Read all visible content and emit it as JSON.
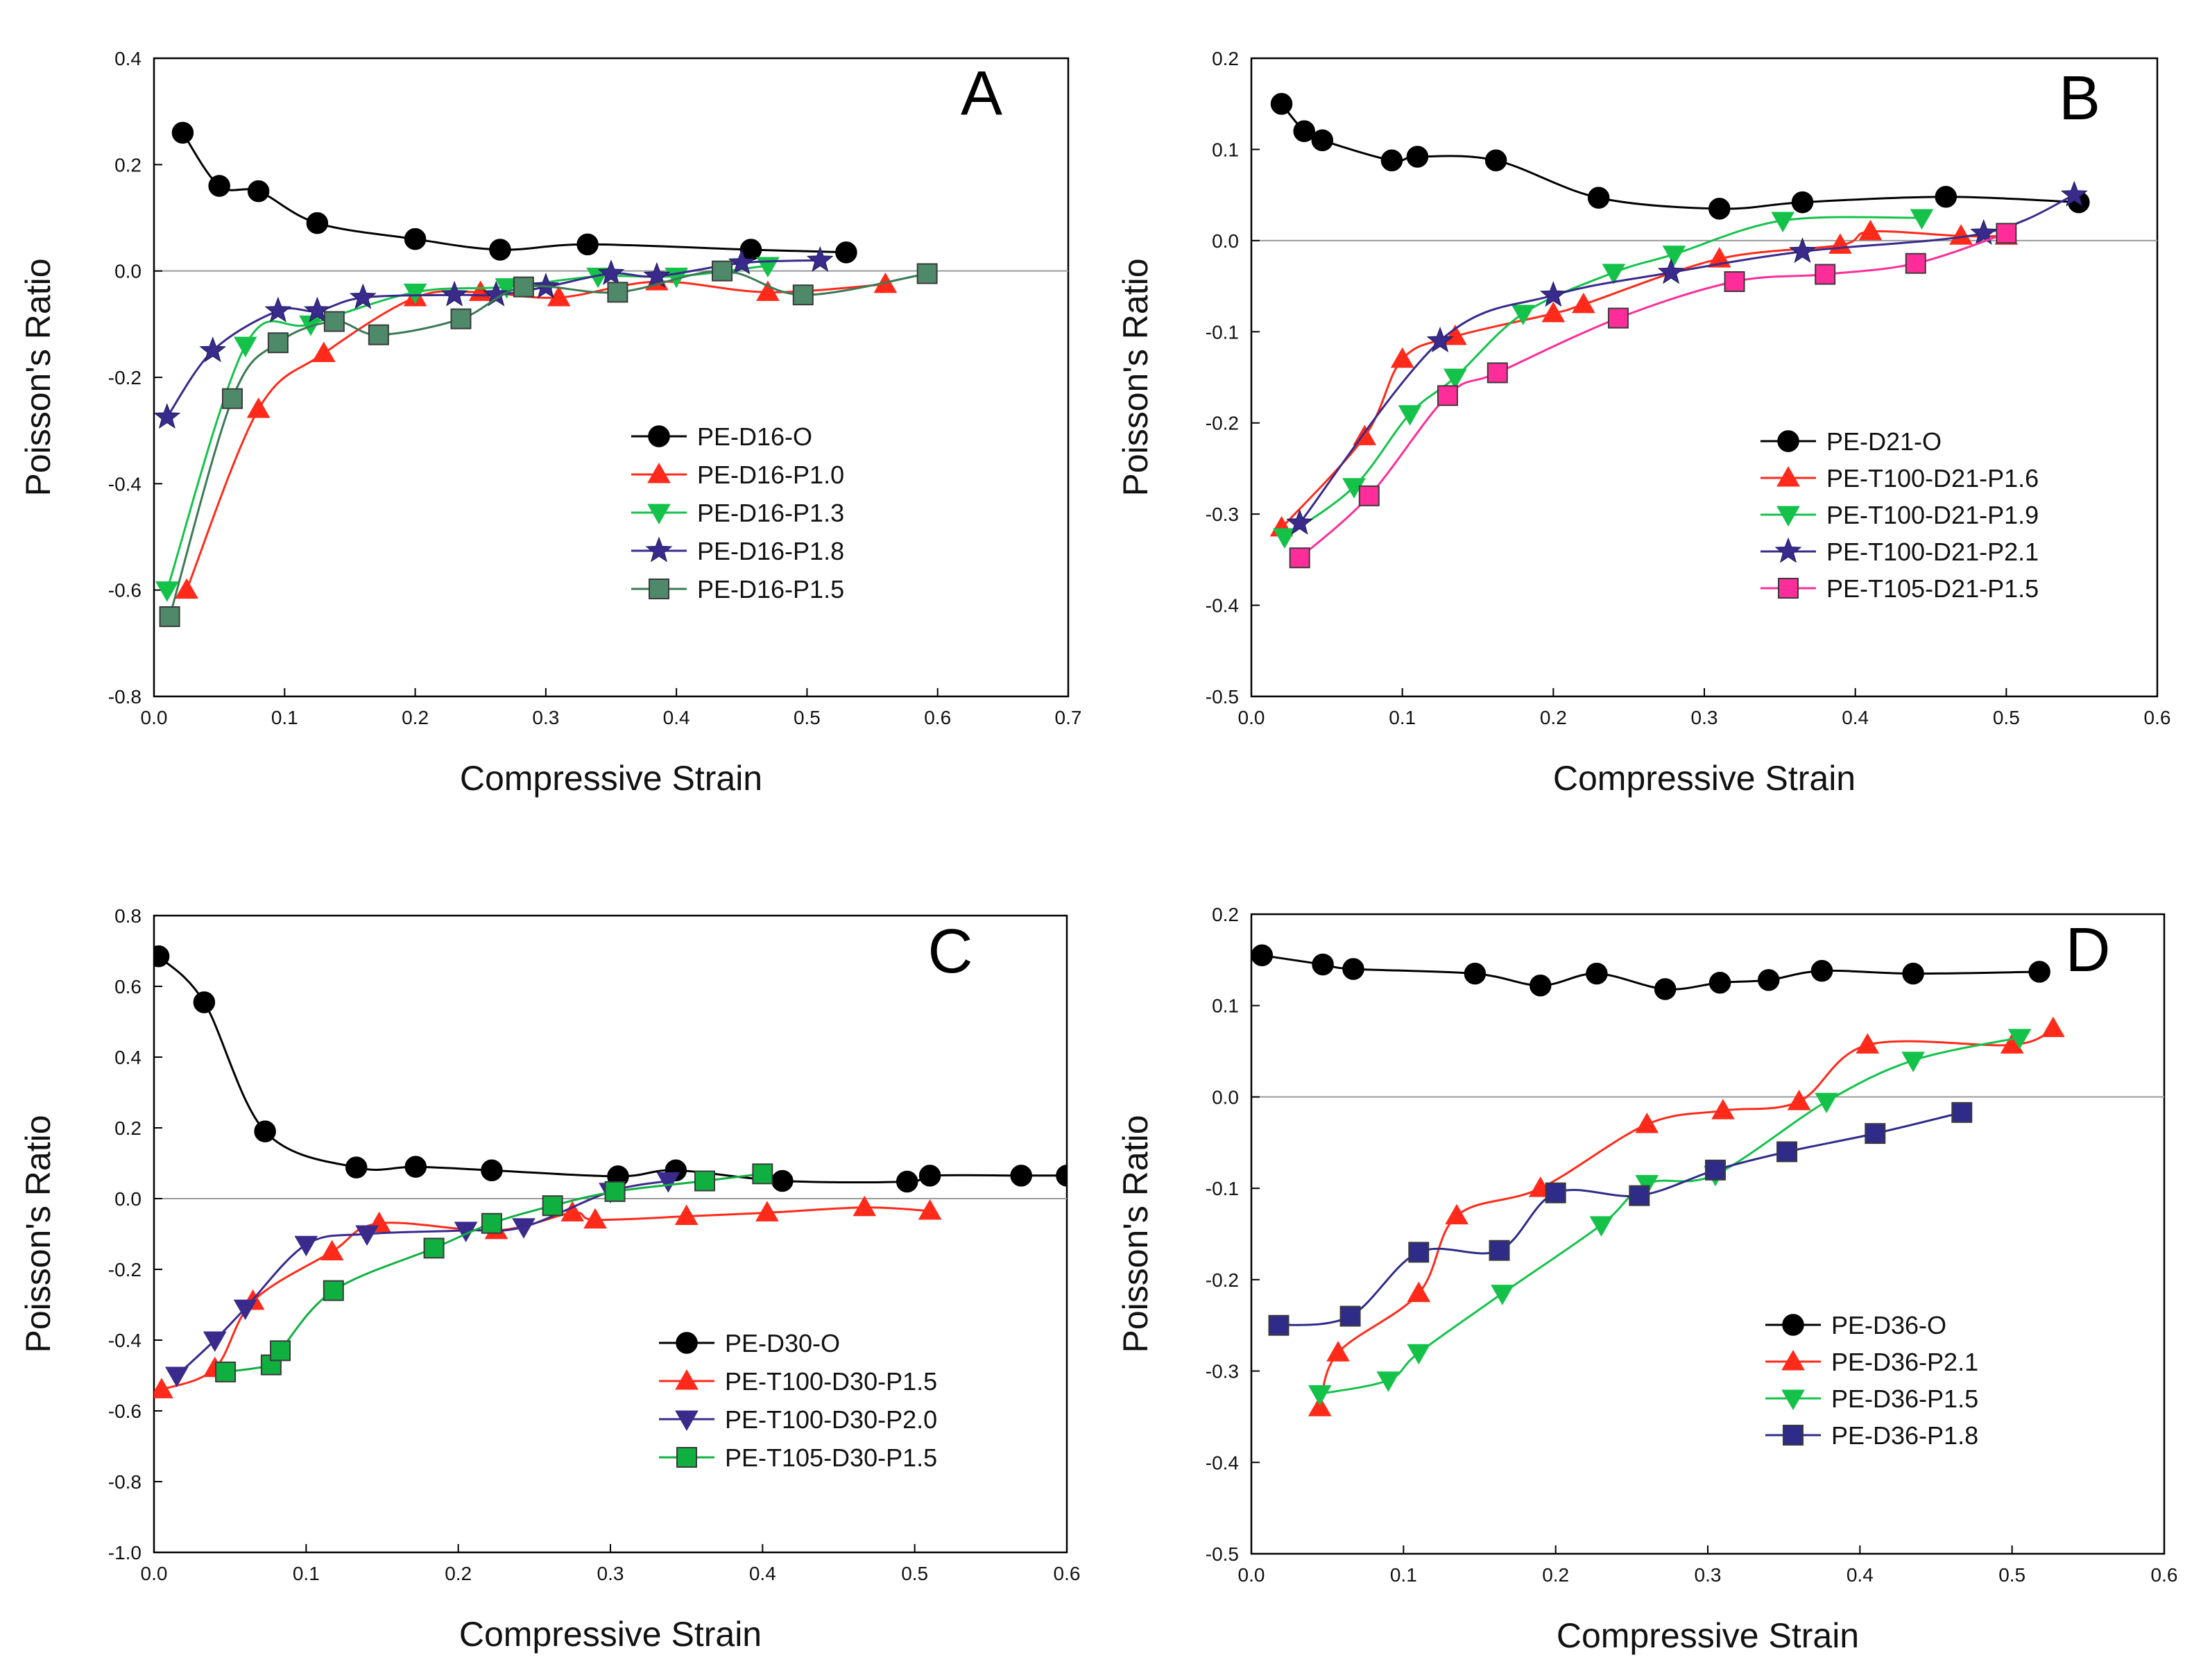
{
  "figure": "Poisson's ratio vs compressive strain, panels A-D",
  "chart_data": [
    {
      "type": "line",
      "panel_label": "A",
      "xlabel": "Compressive Strain",
      "ylabel": "Poisson's Ratio",
      "xlim": [
        0.0,
        0.7
      ],
      "ylim": [
        -0.8,
        0.4
      ],
      "xticks": [
        "0.0",
        "0.1",
        "0.2",
        "0.3",
        "0.4",
        "0.5",
        "0.6",
        "0.7"
      ],
      "yticks": [
        "-0.8",
        "-0.6",
        "-0.4",
        "-0.2",
        "0.0",
        "0.2",
        "0.4"
      ],
      "legend_position": "lower-right",
      "series": [
        {
          "name": "PE-D16-O",
          "color": "#000000",
          "marker": "circle",
          "marker_fill": "#000000",
          "x": [
            0.022,
            0.05,
            0.08,
            0.125,
            0.2,
            0.265,
            0.332,
            0.457,
            0.53
          ],
          "y": [
            0.26,
            0.16,
            0.15,
            0.09,
            0.06,
            0.04,
            0.05,
            0.04,
            0.035
          ]
        },
        {
          "name": "PE-D16-P1.0",
          "color": "#ff2a1a",
          "marker": "triangle-up",
          "marker_fill": "#ff2a1a",
          "x": [
            0.025,
            0.08,
            0.13,
            0.2,
            0.25,
            0.31,
            0.385,
            0.47,
            0.56
          ],
          "y": [
            -0.6,
            -0.26,
            -0.155,
            -0.05,
            -0.04,
            -0.05,
            -0.02,
            -0.04,
            -0.025
          ]
        },
        {
          "name": "PE-D16-P1.3",
          "color": "#14c24a",
          "marker": "triangle-down",
          "marker_fill": "#14c24a",
          "x": [
            0.01,
            0.07,
            0.12,
            0.2,
            0.27,
            0.34,
            0.4,
            0.47
          ],
          "y": [
            -0.6,
            -0.14,
            -0.1,
            -0.04,
            -0.03,
            -0.01,
            -0.01,
            0.01
          ]
        },
        {
          "name": "PE-D16-P1.8",
          "color": "#3a2a8c",
          "marker": "star",
          "marker_fill": "#3a2a8c",
          "x": [
            0.01,
            0.045,
            0.095,
            0.125,
            0.16,
            0.23,
            0.262,
            0.3,
            0.35,
            0.385,
            0.45,
            0.51
          ],
          "y": [
            -0.275,
            -0.15,
            -0.075,
            -0.075,
            -0.05,
            -0.045,
            -0.045,
            -0.03,
            -0.005,
            -0.01,
            0.015,
            0.02
          ]
        },
        {
          "name": "PE-D16-P1.5",
          "color": "#3a7a55",
          "marker": "square",
          "marker_fill": "#4e8a6a",
          "x": [
            0.012,
            0.06,
            0.095,
            0.138,
            0.172,
            0.235,
            0.283,
            0.355,
            0.435,
            0.497,
            0.592
          ],
          "y": [
            -0.65,
            -0.24,
            -0.135,
            -0.095,
            -0.12,
            -0.09,
            -0.03,
            -0.04,
            0.0,
            -0.045,
            -0.005
          ]
        }
      ]
    },
    {
      "type": "line",
      "panel_label": "B",
      "xlabel": "Compressive Strain",
      "ylabel": "Poisson's Ratio",
      "xlim": [
        0.0,
        0.6
      ],
      "ylim": [
        -0.5,
        0.2
      ],
      "xticks": [
        "0.0",
        "0.1",
        "0.2",
        "0.3",
        "0.4",
        "0.5",
        "0.6"
      ],
      "yticks": [
        "-0.5",
        "-0.4",
        "-0.3",
        "-0.2",
        "-0.1",
        "0.0",
        "0.1",
        "0.2"
      ],
      "legend_position": "lower-right",
      "series": [
        {
          "name": "PE-D21-O",
          "color": "#000000",
          "marker": "circle",
          "marker_fill": "#000000",
          "x": [
            0.02,
            0.035,
            0.047,
            0.093,
            0.11,
            0.162,
            0.23,
            0.31,
            0.365,
            0.46,
            0.548
          ],
          "y": [
            0.15,
            0.12,
            0.11,
            0.088,
            0.092,
            0.088,
            0.047,
            0.035,
            0.042,
            0.048,
            0.042
          ]
        },
        {
          "name": "PE-T100-D21-P1.6",
          "color": "#ff2a1a",
          "marker": "triangle-up",
          "marker_fill": "#ff2a1a",
          "x": [
            0.02,
            0.075,
            0.1,
            0.135,
            0.2,
            0.22,
            0.31,
            0.39,
            0.41,
            0.47,
            0.5
          ],
          "y": [
            -0.315,
            -0.215,
            -0.13,
            -0.105,
            -0.08,
            -0.07,
            -0.02,
            -0.005,
            0.01,
            0.005,
            0.005
          ]
        },
        {
          "name": "PE-T100-D21-P1.9",
          "color": "#14c24a",
          "marker": "triangle-down",
          "marker_fill": "#14c24a",
          "x": [
            0.022,
            0.068,
            0.105,
            0.135,
            0.18,
            0.24,
            0.28,
            0.352,
            0.444
          ],
          "y": [
            -0.325,
            -0.27,
            -0.19,
            -0.15,
            -0.08,
            -0.035,
            -0.015,
            0.022,
            0.025
          ]
        },
        {
          "name": "PE-T100-D21-P2.1",
          "color": "#3a2a8c",
          "marker": "star",
          "marker_fill": "#3a2a8c",
          "x": [
            0.032,
            0.125,
            0.2,
            0.278,
            0.365,
            0.485,
            0.545
          ],
          "y": [
            -0.31,
            -0.11,
            -0.06,
            -0.035,
            -0.012,
            0.008,
            0.05
          ]
        },
        {
          "name": "PE-T105-D21-P1.5",
          "color": "#ff2d9a",
          "marker": "square",
          "marker_fill": "#ff2d9a",
          "x": [
            0.032,
            0.078,
            0.13,
            0.163,
            0.243,
            0.32,
            0.38,
            0.44,
            0.5
          ],
          "y": [
            -0.348,
            -0.28,
            -0.17,
            -0.145,
            -0.085,
            -0.045,
            -0.037,
            -0.025,
            0.008
          ]
        }
      ]
    },
    {
      "type": "line",
      "panel_label": "C",
      "xlabel": "Compressive Strain",
      "ylabel": "Poisson's Ratio",
      "xlim": [
        0.0,
        0.6
      ],
      "ylim": [
        -1.0,
        0.8
      ],
      "xticks": [
        "0.0",
        "0.1",
        "0.2",
        "0.3",
        "0.4",
        "0.5",
        "0.6"
      ],
      "yticks": [
        "-1.0",
        "-0.8",
        "-0.6",
        "-0.4",
        "-0.2",
        "0.0",
        "0.2",
        "0.4",
        "0.6",
        "0.8"
      ],
      "legend_position": "lower-right",
      "series": [
        {
          "name": "PE-D30-O",
          "color": "#000000",
          "marker": "circle",
          "marker_fill": "#000000",
          "x": [
            0.003,
            0.033,
            0.073,
            0.133,
            0.172,
            0.222,
            0.305,
            0.343,
            0.413,
            0.495,
            0.51,
            0.57,
            0.6
          ],
          "y": [
            0.685,
            0.555,
            0.19,
            0.088,
            0.09,
            0.08,
            0.063,
            0.08,
            0.05,
            0.048,
            0.065,
            0.065,
            0.065
          ]
        },
        {
          "name": "PE-T100-D30-P1.5",
          "color": "#ff2a1a",
          "marker": "triangle-up",
          "marker_fill": "#ff2a1a",
          "x": [
            0.005,
            0.04,
            0.065,
            0.117,
            0.148,
            0.225,
            0.275,
            0.29,
            0.35,
            0.403,
            0.467,
            0.51
          ],
          "y": [
            -0.54,
            -0.48,
            -0.29,
            -0.15,
            -0.07,
            -0.09,
            -0.04,
            -0.06,
            -0.05,
            -0.04,
            -0.025,
            -0.035
          ]
        },
        {
          "name": "PE-T100-D30-P2.0",
          "color": "#3a2a8c",
          "marker": "triangle-down",
          "marker_fill": "#3a2a8c",
          "x": [
            0.015,
            0.04,
            0.06,
            0.1,
            0.14,
            0.205,
            0.243,
            0.3,
            0.338
          ],
          "y": [
            -0.5,
            -0.4,
            -0.31,
            -0.13,
            -0.1,
            -0.09,
            -0.08,
            0.02,
            0.05
          ]
        },
        {
          "name": "PE-T105-D30-P1.5",
          "color": "#10b040",
          "marker": "square",
          "marker_fill": "#10b040",
          "x": [
            0.047,
            0.077,
            0.083,
            0.118,
            0.184,
            0.222,
            0.262,
            0.303,
            0.362,
            0.4
          ],
          "y": [
            -0.49,
            -0.47,
            -0.43,
            -0.26,
            -0.14,
            -0.07,
            -0.02,
            0.02,
            0.05,
            0.07
          ]
        }
      ]
    },
    {
      "type": "line",
      "panel_label": "D",
      "xlabel": "Compressive Strain",
      "ylabel": "Poisson's Ratio",
      "xlim": [
        0.0,
        0.6
      ],
      "ylim": [
        -0.5,
        0.2
      ],
      "xticks": [
        "0.0",
        "0.1",
        "0.2",
        "0.3",
        "0.4",
        "0.5",
        "0.6"
      ],
      "yticks": [
        "-0.5",
        "-0.4",
        "-0.3",
        "-0.2",
        "-0.1",
        "0.0",
        "0.1",
        "0.2"
      ],
      "legend_position": "lower-right",
      "series": [
        {
          "name": "PE-D36-O",
          "color": "#000000",
          "marker": "circle",
          "marker_fill": "#000000",
          "x": [
            0.007,
            0.047,
            0.067,
            0.147,
            0.19,
            0.227,
            0.272,
            0.308,
            0.34,
            0.375,
            0.435,
            0.518
          ],
          "y": [
            0.155,
            0.145,
            0.14,
            0.135,
            0.122,
            0.135,
            0.118,
            0.125,
            0.128,
            0.138,
            0.135,
            0.137
          ]
        },
        {
          "name": "PE-D36-P2.1",
          "color": "#ff2a1a",
          "marker": "triangle-up",
          "marker_fill": "#ff2a1a",
          "x": [
            0.045,
            0.057,
            0.11,
            0.135,
            0.19,
            0.26,
            0.31,
            0.36,
            0.405,
            0.5,
            0.527
          ],
          "y": [
            -0.34,
            -0.28,
            -0.215,
            -0.13,
            -0.1,
            -0.03,
            -0.015,
            -0.005,
            0.057,
            0.057,
            0.075
          ]
        },
        {
          "name": "PE-D36-P1.5",
          "color": "#14c24a",
          "marker": "triangle-down",
          "marker_fill": "#14c24a",
          "x": [
            0.045,
            0.09,
            0.11,
            0.165,
            0.23,
            0.26,
            0.305,
            0.378,
            0.435,
            0.505
          ],
          "y": [
            -0.325,
            -0.31,
            -0.28,
            -0.215,
            -0.14,
            -0.095,
            -0.085,
            -0.005,
            0.04,
            0.065
          ]
        },
        {
          "name": "PE-D36-P1.8",
          "color": "#2e2c88",
          "marker": "square",
          "marker_fill": "#2e2c88",
          "x": [
            0.018,
            0.065,
            0.11,
            0.163,
            0.2,
            0.255,
            0.305,
            0.352,
            0.41,
            0.467
          ],
          "y": [
            -0.25,
            -0.24,
            -0.17,
            -0.168,
            -0.105,
            -0.108,
            -0.08,
            -0.06,
            -0.04,
            -0.017
          ]
        }
      ]
    }
  ]
}
